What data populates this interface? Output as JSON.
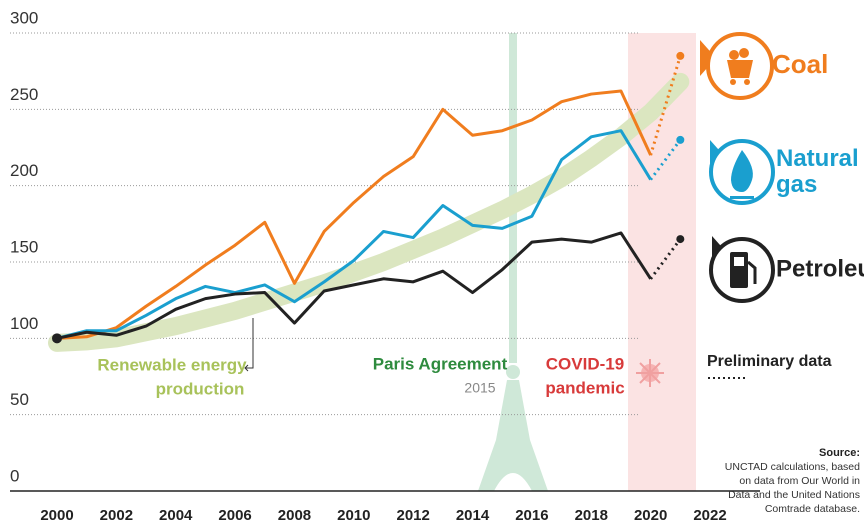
{
  "chart_data": {
    "type": "line",
    "x": [
      2000,
      2001,
      2002,
      2003,
      2004,
      2005,
      2006,
      2007,
      2008,
      2009,
      2010,
      2011,
      2012,
      2013,
      2014,
      2015,
      2016,
      2017,
      2018,
      2019,
      2020,
      2021
    ],
    "series": [
      {
        "name": "Coal",
        "color": "#f07d1e",
        "values": [
          100,
          101,
          107,
          121,
          134,
          148,
          161,
          176,
          136,
          170,
          189,
          206,
          219,
          250,
          233,
          236,
          243,
          255,
          260,
          262,
          220,
          285
        ]
      },
      {
        "name": "Natural gas",
        "color": "#1a9fcf",
        "values": [
          100,
          105,
          105,
          115,
          126,
          134,
          130,
          135,
          124,
          137,
          151,
          170,
          166,
          187,
          174,
          172,
          180,
          217,
          232,
          236,
          204,
          230
        ]
      },
      {
        "name": "Petroleum",
        "color": "#222222",
        "values": [
          100,
          104,
          102,
          108,
          119,
          126,
          129,
          130,
          110,
          131,
          135,
          139,
          137,
          144,
          130,
          145,
          163,
          165,
          163,
          169,
          139,
          165
        ]
      }
    ],
    "trend": {
      "name": "Renewable energy production",
      "color": "#dbe6c0",
      "values": [
        97,
        98,
        100,
        104,
        108,
        113,
        118,
        124,
        130,
        136,
        143,
        150,
        158,
        166,
        175,
        184,
        194,
        205,
        218,
        232,
        248,
        268
      ]
    },
    "xlim": [
      2000,
      2022
    ],
    "xticks": [
      2000,
      2002,
      2004,
      2006,
      2008,
      2010,
      2012,
      2014,
      2016,
      2018,
      2020,
      2022
    ],
    "ylim": [
      0,
      300
    ],
    "yticks": [
      0,
      50,
      100,
      150,
      200,
      250,
      300
    ],
    "grid": true,
    "annotations": {
      "renewable": [
        "Renewable energy",
        "production"
      ],
      "paris": "Paris Agreement",
      "paris_year": "2015",
      "covid": [
        "COVID-19",
        "pandemic"
      ],
      "preliminary": "Preliminary data",
      "source_title": "Source:",
      "source": [
        "UNCTAD calculations, based",
        "on data from Our World in",
        "Data and the United Nations",
        "Comtrade database."
      ]
    }
  }
}
